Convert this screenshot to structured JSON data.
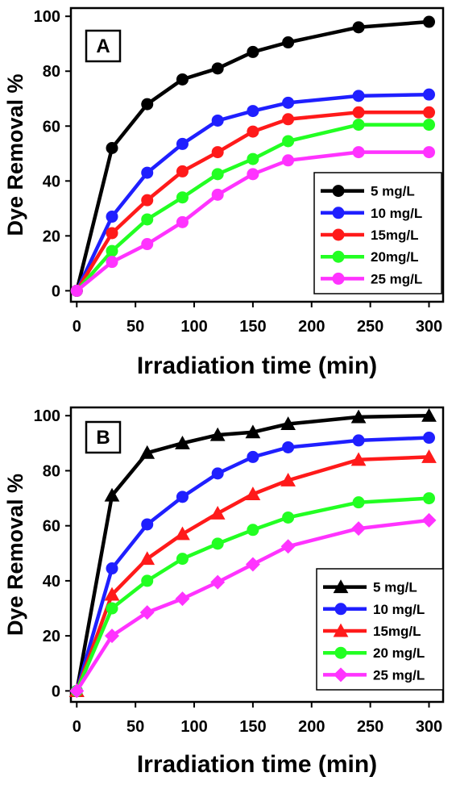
{
  "chart_data": [
    {
      "type": "line",
      "panel_label": "A",
      "xlabel": "Irradiation time (min)",
      "ylabel": "Dye Removal %",
      "xlim": [
        -5,
        312
      ],
      "ylim": [
        -4,
        103
      ],
      "xticks": [
        0,
        50,
        100,
        150,
        200,
        250,
        300
      ],
      "yticks": [
        0,
        20,
        40,
        60,
        80,
        100
      ],
      "legend_position": "bottom-right",
      "x": [
        0,
        30,
        60,
        90,
        120,
        150,
        180,
        240,
        300
      ],
      "series": [
        {
          "name": "5 mg/L",
          "color": "#000000",
          "marker": "circle",
          "values": [
            0,
            52,
            68,
            77,
            81,
            87,
            90.5,
            96,
            98
          ]
        },
        {
          "name": "10 mg/L",
          "color": "#1f1fff",
          "marker": "circle",
          "values": [
            0,
            27,
            43,
            53.5,
            62,
            65.5,
            68.5,
            71,
            71.5
          ]
        },
        {
          "name": "15mg/L",
          "color": "#ff1a1a",
          "marker": "circle",
          "values": [
            0,
            21,
            33,
            43.5,
            50.5,
            58,
            62.5,
            65,
            65
          ]
        },
        {
          "name": "20mg/L",
          "color": "#22ff22",
          "marker": "circle",
          "values": [
            0,
            14.5,
            26,
            34,
            42.5,
            48,
            54.5,
            60.5,
            60.5
          ]
        },
        {
          "name": "25 mg/L",
          "color": "#ff33ff",
          "marker": "circle",
          "values": [
            0,
            10.5,
            17,
            25,
            35,
            42.5,
            47.5,
            50.5,
            50.5
          ]
        }
      ]
    },
    {
      "type": "line",
      "panel_label": "B",
      "xlabel": "Irradiation time (min)",
      "ylabel": "Dye Removal %",
      "xlim": [
        -5,
        312
      ],
      "ylim": [
        -4,
        103
      ],
      "xticks": [
        0,
        50,
        100,
        150,
        200,
        250,
        300
      ],
      "yticks": [
        0,
        20,
        40,
        60,
        80,
        100
      ],
      "legend_position": "bottom-right",
      "x": [
        0,
        30,
        60,
        90,
        120,
        150,
        180,
        240,
        300
      ],
      "series": [
        {
          "name": "5 mg/L",
          "color": "#000000",
          "marker": "triangle",
          "values": [
            0,
            71,
            86.5,
            90,
            93,
            94,
            97,
            99.5,
            100
          ]
        },
        {
          "name": "10 mg/L",
          "color": "#1f1fff",
          "marker": "circle",
          "values": [
            0,
            44.5,
            60.5,
            70.5,
            79,
            85,
            88.5,
            91,
            92
          ]
        },
        {
          "name": "15mg/L",
          "color": "#ff1a1a",
          "marker": "triangle",
          "values": [
            0,
            35,
            48,
            57,
            64.5,
            71.5,
            76.5,
            84,
            85
          ]
        },
        {
          "name": "20 mg/L",
          "color": "#22ff22",
          "marker": "circle",
          "values": [
            0,
            30,
            40,
            48,
            53.5,
            58.5,
            63,
            68.5,
            70
          ]
        },
        {
          "name": "25 mg/L",
          "color": "#ff33ff",
          "marker": "diamond",
          "values": [
            0,
            20,
            28.5,
            33.5,
            39.5,
            46,
            52.5,
            59,
            62
          ]
        }
      ]
    }
  ]
}
